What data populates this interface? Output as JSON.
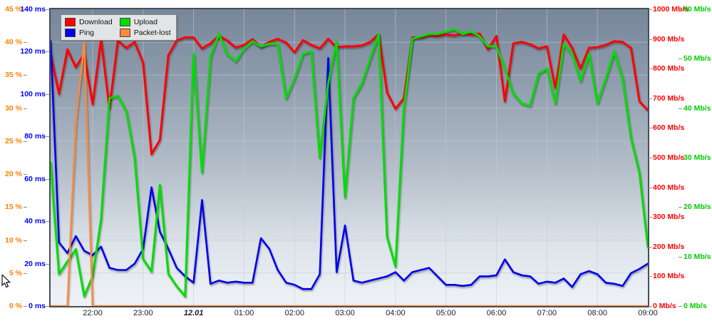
{
  "chart_data": {
    "type": "line",
    "title": "",
    "x_axis_label": "",
    "grid": true,
    "legend_position": "top-left-inside",
    "x_times": [
      "21:10",
      "21:20",
      "21:30",
      "21:40",
      "21:50",
      "22:00",
      "22:10",
      "22:20",
      "22:30",
      "22:40",
      "22:50",
      "23:00",
      "23:10",
      "23:20",
      "23:30",
      "23:40",
      "23:50",
      "00:00",
      "00:10",
      "00:20",
      "00:30",
      "00:40",
      "00:50",
      "01:00",
      "01:10",
      "01:20",
      "01:30",
      "01:40",
      "01:50",
      "02:00",
      "02:10",
      "02:20",
      "02:30",
      "02:40",
      "02:50",
      "03:00",
      "03:10",
      "03:20",
      "03:30",
      "03:40",
      "03:50",
      "04:00",
      "04:10",
      "04:20",
      "04:30",
      "04:40",
      "04:50",
      "05:00",
      "05:10",
      "05:20",
      "05:30",
      "05:40",
      "05:50",
      "06:00",
      "06:10",
      "06:20",
      "06:30",
      "06:40",
      "06:50",
      "07:00",
      "07:10",
      "07:20",
      "07:30",
      "07:40",
      "07:50",
      "08:00",
      "08:10",
      "08:20",
      "08:30",
      "08:40",
      "08:50",
      "09:00"
    ],
    "x_ticks": [
      {
        "label": "22:00",
        "index": 5,
        "emphasis": false
      },
      {
        "label": "23:00",
        "index": 11,
        "emphasis": false
      },
      {
        "label": "12.01",
        "index": 17,
        "emphasis": true
      },
      {
        "label": "01:00",
        "index": 23,
        "emphasis": false
      },
      {
        "label": "02:00",
        "index": 29,
        "emphasis": false
      },
      {
        "label": "03:00",
        "index": 35,
        "emphasis": false
      },
      {
        "label": "04:00",
        "index": 41,
        "emphasis": false
      },
      {
        "label": "05:00",
        "index": 47,
        "emphasis": false
      },
      {
        "label": "06:00",
        "index": 53,
        "emphasis": false
      },
      {
        "label": "07:00",
        "index": 59,
        "emphasis": false
      },
      {
        "label": "08:00",
        "index": 65,
        "emphasis": false
      },
      {
        "label": "09:00",
        "index": 71,
        "emphasis": false
      }
    ],
    "axes": {
      "percent": {
        "side": "left-outer",
        "max": 45,
        "color": "#ff8000",
        "unit": "%",
        "ticks": [
          [
            45,
            "45 %"
          ],
          [
            40,
            "40 %"
          ],
          [
            35,
            "35 %"
          ],
          [
            30,
            "30 %"
          ],
          [
            25,
            "25 %"
          ],
          [
            20,
            "20 %"
          ],
          [
            15,
            "15 %"
          ],
          [
            10,
            "10 %"
          ],
          [
            5,
            "5 %"
          ],
          [
            0,
            "0 %"
          ]
        ]
      },
      "ms": {
        "side": "left-inner",
        "max": 140,
        "color": "#0000ff",
        "unit": "ms",
        "ticks": [
          [
            140,
            "140 ms"
          ],
          [
            120,
            "120 ms"
          ],
          [
            100,
            "100 ms"
          ],
          [
            80,
            "80 ms"
          ],
          [
            60,
            "60 ms"
          ],
          [
            40,
            "40 ms"
          ],
          [
            20,
            "20 ms"
          ],
          [
            0,
            "0 ms"
          ]
        ]
      },
      "mbps1000": {
        "side": "right-inner",
        "max": 1000,
        "color": "#ff0000",
        "unit": "Mb/s",
        "ticks": [
          [
            1000,
            "1000 Mb/s"
          ],
          [
            900,
            "900 Mb/s"
          ],
          [
            800,
            "800 Mb/s"
          ],
          [
            700,
            "700 Mb/s"
          ],
          [
            600,
            "600 Mb/s"
          ],
          [
            500,
            "500 Mb/s"
          ],
          [
            400,
            "400 Mb/s"
          ],
          [
            300,
            "300 Mb/s"
          ],
          [
            200,
            "200 Mb/s"
          ],
          [
            100,
            "100 Mb/s"
          ],
          [
            0,
            "0 Mb/s"
          ]
        ]
      },
      "mbps60": {
        "side": "right-outer",
        "max": 60,
        "color": "#00cc00",
        "unit": "Mb/s",
        "ticks": [
          [
            60,
            "60 Mb/s"
          ],
          [
            50,
            "50 Mb/s"
          ],
          [
            40,
            "40 Mb/s"
          ],
          [
            30,
            "30 Mb/s"
          ],
          [
            20,
            "20 Mb/s"
          ],
          [
            10,
            "10 Mb/s"
          ],
          [
            0,
            "0 Mb/s"
          ]
        ]
      }
    },
    "series": [
      {
        "name": "Download",
        "color": "#ff0000",
        "axis": "mbps1000",
        "unit": "Mb/s",
        "stroke_width": 3,
        "values": [
          850,
          715,
          865,
          805,
          850,
          680,
          900,
          666,
          895,
          870,
          890,
          820,
          512,
          560,
          845,
          895,
          905,
          905,
          868,
          885,
          910,
          895,
          871,
          880,
          899,
          873,
          890,
          900,
          888,
          855,
          896,
          880,
          868,
          900,
          872,
          875,
          875,
          878,
          890,
          916,
          720,
          665,
          700,
          905,
          905,
          912,
          910,
          915,
          912,
          918,
          915,
          918,
          865,
          910,
          690,
          885,
          890,
          882,
          868,
          875,
          735,
          915,
          870,
          800,
          870,
          872,
          880,
          892,
          890,
          870,
          690,
          660
        ]
      },
      {
        "name": "Upload",
        "color": "#00dd00",
        "axis": "mbps60",
        "unit": "Mb/s",
        "stroke_width": 3,
        "values": [
          29,
          6.5,
          9,
          11.5,
          2,
          6,
          17.5,
          42,
          42.5,
          39.5,
          30,
          9.5,
          7,
          24.5,
          6.5,
          4,
          2,
          51,
          27,
          50.5,
          55,
          51,
          49.5,
          52,
          53.5,
          52.5,
          53,
          53,
          42,
          46,
          51,
          51.5,
          30,
          45,
          53.5,
          22,
          42,
          45,
          50,
          55,
          14,
          8,
          40,
          54,
          54.5,
          55,
          55,
          55.5,
          56,
          55,
          55.5,
          54.5,
          52.5,
          52.5,
          48,
          43,
          41,
          40.5,
          47,
          48,
          41,
          53,
          51,
          45.5,
          51,
          41,
          46,
          51.5,
          46,
          34,
          27,
          12
        ]
      },
      {
        "name": "Ping",
        "color": "#0000ee",
        "axis": "ms",
        "unit": "ms",
        "stroke_width": 2.6,
        "values": [
          125,
          30,
          25,
          33,
          26,
          24,
          28,
          18,
          17,
          17,
          20,
          27,
          56,
          35,
          27,
          18,
          14,
          11,
          50,
          10.5,
          12,
          11,
          11.5,
          11,
          11,
          32,
          27,
          17,
          11,
          10,
          8,
          8,
          15,
          117,
          16,
          38,
          12,
          11,
          12,
          13,
          14,
          16,
          12,
          16,
          17,
          18,
          14,
          10,
          10,
          9.5,
          10,
          14,
          14,
          14.5,
          22,
          16,
          14.5,
          14,
          10.5,
          11.5,
          11,
          13,
          9,
          15,
          16.5,
          15,
          11,
          10.5,
          9.5,
          15.5,
          17.5,
          20
        ]
      },
      {
        "name": "Packet-lost",
        "color": "#ff8a3c",
        "axis": "percent",
        "unit": "%",
        "stroke_width": 2.6,
        "values": [
          0,
          0,
          0,
          28,
          40,
          0,
          0,
          0,
          0,
          0,
          0,
          0,
          0,
          0,
          0,
          0,
          0,
          0,
          0,
          0,
          0,
          0,
          0,
          0,
          0,
          0,
          0,
          0,
          0,
          0,
          0,
          0,
          0,
          0,
          0,
          0,
          0,
          0,
          0,
          0,
          0,
          0,
          0,
          0,
          0,
          0,
          0,
          0,
          0,
          0,
          0,
          0,
          0,
          0,
          0,
          0,
          0,
          0,
          0,
          0,
          0,
          0,
          0,
          0,
          0,
          0,
          0,
          0,
          0,
          0,
          0,
          0
        ]
      }
    ]
  },
  "legend": {
    "items": [
      {
        "label": "Download",
        "color": "#ff0000"
      },
      {
        "label": "Upload",
        "color": "#00dd00"
      },
      {
        "label": "Ping",
        "color": "#0000ee"
      },
      {
        "label": "Packet-lost",
        "color": "#ff8a3c"
      }
    ]
  },
  "icons": {
    "mouse_cursor": "mouse-pointer-arrow"
  }
}
